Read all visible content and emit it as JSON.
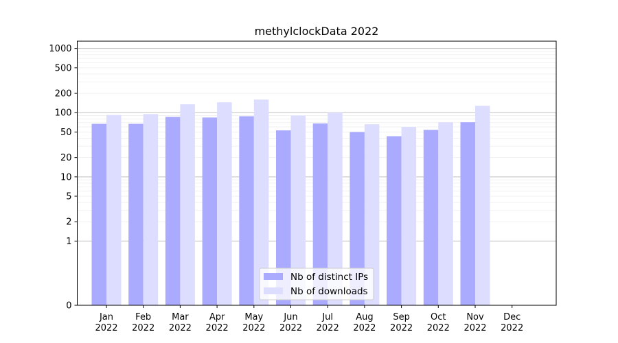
{
  "chart_data": {
    "type": "bar",
    "title": "methylclockData 2022",
    "xlabel": "",
    "ylabel": "",
    "y_scale": "symlog",
    "ylim": [
      0,
      1300
    ],
    "y_ticks": [
      0,
      1,
      2,
      5,
      10,
      20,
      50,
      100,
      200,
      500,
      1000
    ],
    "y_tick_labels": [
      "0",
      "1",
      "2",
      "5",
      "10",
      "20",
      "50",
      "100",
      "200",
      "500",
      "1000"
    ],
    "categories": [
      {
        "month": "Jan",
        "year": "2022"
      },
      {
        "month": "Feb",
        "year": "2022"
      },
      {
        "month": "Mar",
        "year": "2022"
      },
      {
        "month": "Apr",
        "year": "2022"
      },
      {
        "month": "May",
        "year": "2022"
      },
      {
        "month": "Jun",
        "year": "2022"
      },
      {
        "month": "Jul",
        "year": "2022"
      },
      {
        "month": "Aug",
        "year": "2022"
      },
      {
        "month": "Sep",
        "year": "2022"
      },
      {
        "month": "Oct",
        "year": "2022"
      },
      {
        "month": "Nov",
        "year": "2022"
      },
      {
        "month": "Dec",
        "year": "2022"
      }
    ],
    "series": [
      {
        "name": "Nb of distinct IPs",
        "color": "#aaaaff",
        "values": [
          67,
          67,
          86,
          84,
          88,
          53,
          68,
          50,
          43,
          54,
          71,
          0
        ]
      },
      {
        "name": "Nb of downloads",
        "color": "#ddddff",
        "values": [
          92,
          95,
          135,
          145,
          160,
          90,
          100,
          66,
          60,
          71,
          128,
          0
        ]
      }
    ],
    "grid": true,
    "legend_position": "bottom-center"
  }
}
